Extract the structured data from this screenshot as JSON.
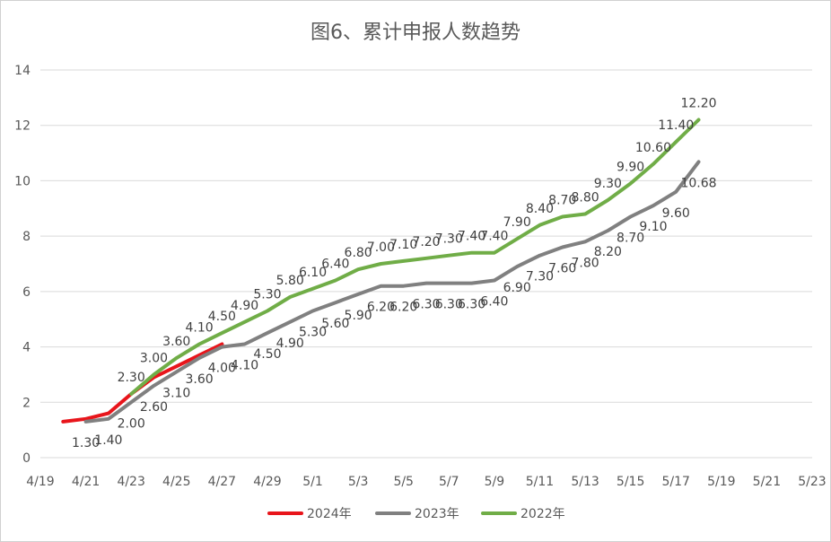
{
  "chart_data": {
    "type": "line",
    "title": "图6、累计申报人数趋势",
    "xlabel": "",
    "ylabel": "",
    "ylim": [
      0,
      14
    ],
    "yticks": [
      "0",
      "2",
      "4",
      "6",
      "8",
      "10",
      "12",
      "14"
    ],
    "xticks": [
      "4/19",
      "4/21",
      "4/23",
      "4/25",
      "4/27",
      "4/29",
      "5/1",
      "5/3",
      "5/5",
      "5/7",
      "5/9",
      "5/11",
      "5/13",
      "5/15",
      "5/17",
      "5/19",
      "5/21",
      "5/23"
    ],
    "grid": true,
    "legend": "bottom",
    "series": [
      {
        "name": "2024年",
        "color": "#e8151b",
        "x": [
          "4/20",
          "4/21",
          "4/22",
          "4/23",
          "4/24",
          "4/25",
          "4/26",
          "4/27"
        ],
        "values": [
          1.3,
          1.4,
          1.6,
          2.3,
          2.9,
          3.3,
          3.7,
          4.1
        ],
        "labels": []
      },
      {
        "name": "2023年",
        "color": "#808080",
        "x": [
          "4/21",
          "4/22",
          "4/23",
          "4/24",
          "4/25",
          "4/26",
          "4/27",
          "4/28",
          "4/29",
          "4/30",
          "5/1",
          "5/2",
          "5/3",
          "5/4",
          "5/5",
          "5/6",
          "5/7",
          "5/8",
          "5/9",
          "5/10",
          "5/11",
          "5/12",
          "5/13",
          "5/14",
          "5/15",
          "5/16",
          "5/17",
          "5/18"
        ],
        "values": [
          1.3,
          1.4,
          2.0,
          2.6,
          3.1,
          3.6,
          4.0,
          4.1,
          4.5,
          4.9,
          5.3,
          5.6,
          5.9,
          6.2,
          6.2,
          6.3,
          6.3,
          6.3,
          6.4,
          6.9,
          7.3,
          7.6,
          7.8,
          8.2,
          8.7,
          9.1,
          9.6,
          10.68
        ],
        "labels": [
          "1.30",
          "1.40",
          "2.00",
          "2.60",
          "3.10",
          "3.60",
          "4.00",
          "4.10",
          "4.50",
          "4.90",
          "5.30",
          "5.60",
          "5.90",
          "6.20",
          "6.20",
          "6.30",
          "6.30",
          "6.30",
          "6.40",
          "6.90",
          "7.30",
          "7.60",
          "7.80",
          "8.20",
          "8.70",
          "9.10",
          "9.60",
          "10.68"
        ]
      },
      {
        "name": "2022年",
        "color": "#70ad47",
        "x": [
          "4/23",
          "4/24",
          "4/25",
          "4/26",
          "4/27",
          "4/28",
          "4/29",
          "4/30",
          "5/1",
          "5/2",
          "5/3",
          "5/4",
          "5/5",
          "5/6",
          "5/7",
          "5/8",
          "5/9",
          "5/10",
          "5/11",
          "5/12",
          "5/13",
          "5/14",
          "5/15",
          "5/16",
          "5/17",
          "5/18"
        ],
        "values": [
          2.3,
          3.0,
          3.6,
          4.1,
          4.5,
          4.9,
          5.3,
          5.8,
          6.1,
          6.4,
          6.8,
          7.0,
          7.1,
          7.2,
          7.3,
          7.4,
          7.4,
          7.9,
          8.4,
          8.7,
          8.8,
          9.3,
          9.9,
          10.6,
          11.4,
          12.2
        ],
        "labels": [
          "2.30",
          "3.00",
          "3.60",
          "4.10",
          "4.50",
          "4.90",
          "5.30",
          "5.80",
          "6.10",
          "6.40",
          "6.80",
          "7.00",
          "7.10",
          "7.20",
          "7.30",
          "7.40",
          "7.40",
          "7.90",
          "8.40",
          "8.70",
          "8.80",
          "9.30",
          "9.90",
          "10.60",
          "11.40",
          "12.20"
        ]
      }
    ]
  }
}
